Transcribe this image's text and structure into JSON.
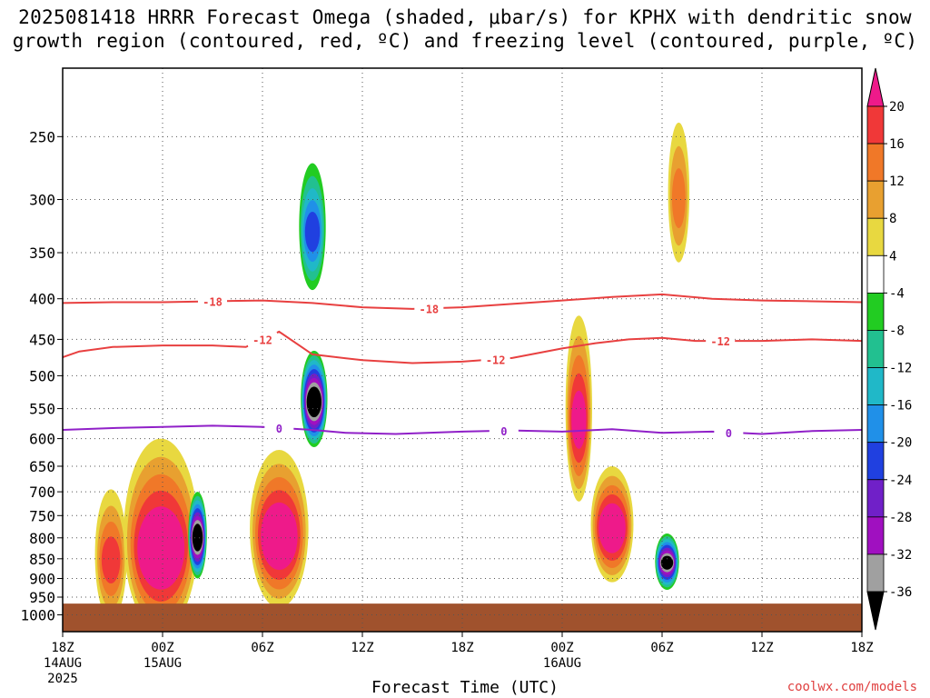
{
  "title_line1": "2025081418 HRRR Forecast Omega (shaded, μbar/s) for KPHX with dendritic snow",
  "title_line2": "growth region (contoured, red, ºC) and freezing level (contoured, purple, ºC)",
  "x_axis_title": "Forecast Time (UTC)",
  "credit": "coolwx.com/models",
  "chart_data": {
    "type": "heatmap",
    "title": "2025081418 HRRR Forecast Omega (shaded, μbar/s) for KPHX",
    "xlabel": "Forecast Time (UTC)",
    "ylabel": "",
    "x_ticks": [
      {
        "hour": 0,
        "label": "18Z",
        "sub1": "14AUG",
        "sub2": "2025"
      },
      {
        "hour": 6,
        "label": "00Z",
        "sub1": "15AUG",
        "sub2": ""
      },
      {
        "hour": 12,
        "label": "06Z",
        "sub1": "",
        "sub2": ""
      },
      {
        "hour": 18,
        "label": "12Z",
        "sub1": "",
        "sub2": ""
      },
      {
        "hour": 24,
        "label": "18Z",
        "sub1": "",
        "sub2": ""
      },
      {
        "hour": 30,
        "label": "00Z",
        "sub1": "16AUG",
        "sub2": ""
      },
      {
        "hour": 36,
        "label": "06Z",
        "sub1": "",
        "sub2": ""
      },
      {
        "hour": 42,
        "label": "12Z",
        "sub1": "",
        "sub2": ""
      },
      {
        "hour": 48,
        "label": "18Z",
        "sub1": "",
        "sub2": ""
      }
    ],
    "xlim": [
      0,
      48
    ],
    "y_ticks": [
      250,
      300,
      350,
      400,
      450,
      500,
      550,
      600,
      650,
      700,
      750,
      800,
      850,
      900,
      950,
      1000
    ],
    "ylim": [
      1050,
      205
    ],
    "y_scale": "log-pressure",
    "grid": true,
    "colorbar": {
      "labels": [
        "20",
        "16",
        "12",
        "8",
        "4",
        "-4",
        "-8",
        "-12",
        "-16",
        "-20",
        "-24",
        "-28",
        "-32",
        "-36"
      ],
      "bins": [
        {
          "range": "> 20",
          "color": "#ee1a8a"
        },
        {
          "range": "16 to 20",
          "color": "#f03838"
        },
        {
          "range": "12 to 16",
          "color": "#f07828"
        },
        {
          "range": "8 to 12",
          "color": "#e8a030"
        },
        {
          "range": "4 to 8",
          "color": "#e8d840"
        },
        {
          "range": "-4 to 4",
          "color": "#ffffff"
        },
        {
          "range": "-8 to -4",
          "color": "#22cc22"
        },
        {
          "range": "-12 to -8",
          "color": "#22c090"
        },
        {
          "range": "-16 to -12",
          "color": "#20b8c8"
        },
        {
          "range": "-20 to -16",
          "color": "#2090e8"
        },
        {
          "range": "-24 to -20",
          "color": "#2040e0"
        },
        {
          "range": "-28 to -24",
          "color": "#7020c8"
        },
        {
          "range": "-32 to -28",
          "color": "#a010c0"
        },
        {
          "range": "-36 to -32",
          "color": "#a0a0a0"
        },
        {
          "range": "< -36",
          "color": "#000000"
        }
      ]
    },
    "ground_color": "#a0522d",
    "contours": [
      {
        "label": "-18",
        "color": "#e84040",
        "x": [
          0,
          3,
          6,
          9,
          12,
          15,
          18,
          21,
          24,
          27,
          30,
          33,
          36,
          39,
          42,
          45,
          48
        ],
        "p": [
          405,
          404,
          404,
          403,
          402,
          405,
          410,
          412,
          410,
          406,
          402,
          398,
          395,
          400,
          402,
          403,
          404
        ],
        "label_hours": [
          9,
          22
        ]
      },
      {
        "label": "-12",
        "color": "#e84040",
        "x": [
          0,
          1,
          3,
          6,
          9,
          11,
          12,
          13,
          15,
          18,
          21,
          24,
          27,
          30,
          32,
          34,
          36,
          38,
          42,
          45,
          48
        ],
        "p": [
          474,
          466,
          460,
          458,
          458,
          460,
          450,
          440,
          470,
          478,
          482,
          480,
          475,
          462,
          455,
          450,
          448,
          452,
          452,
          450,
          452
        ],
        "label_hours": [
          12,
          26,
          39.5
        ]
      },
      {
        "label": "0",
        "color": "#9020c8",
        "x": [
          0,
          3,
          6,
          9,
          12,
          15,
          17,
          20,
          24,
          27,
          30,
          33,
          36,
          39,
          42,
          45,
          48
        ],
        "p": [
          585,
          582,
          580,
          578,
          580,
          585,
          590,
          592,
          588,
          586,
          588,
          584,
          590,
          588,
          592,
          587,
          585
        ],
        "label_hours": [
          13,
          26.5,
          40
        ]
      }
    ],
    "omega_blobs": [
      {
        "t": 2.9,
        "p": 855,
        "rx": 0.6,
        "rp": 160,
        "v": 18,
        "note": "pink column 21Z 14AUG"
      },
      {
        "t": 5.9,
        "p": 830,
        "rx": 1.4,
        "rp": 230,
        "v": 24,
        "note": "magenta near 00Z 15AUG"
      },
      {
        "t": 8.1,
        "p": 800,
        "rx": 0.35,
        "rp": 100,
        "v": -40,
        "note": "black core"
      },
      {
        "t": 13.0,
        "p": 800,
        "rx": 1.1,
        "rp": 180,
        "v": 24
      },
      {
        "t": 15.1,
        "p": 540,
        "rx": 0.5,
        "rp": 75,
        "v": -40
      },
      {
        "t": 15.0,
        "p": 330,
        "rx": 0.5,
        "rp": 60,
        "v": -20
      },
      {
        "t": 31.0,
        "p": 570,
        "rx": 0.5,
        "rp": 150,
        "v": 22
      },
      {
        "t": 33.0,
        "p": 780,
        "rx": 0.8,
        "rp": 130,
        "v": 24
      },
      {
        "t": 36.3,
        "p": 860,
        "rx": 0.45,
        "rp": 70,
        "v": -36
      },
      {
        "t": 37.0,
        "p": 300,
        "rx": 0.4,
        "rp": 60,
        "v": 12
      }
    ]
  }
}
